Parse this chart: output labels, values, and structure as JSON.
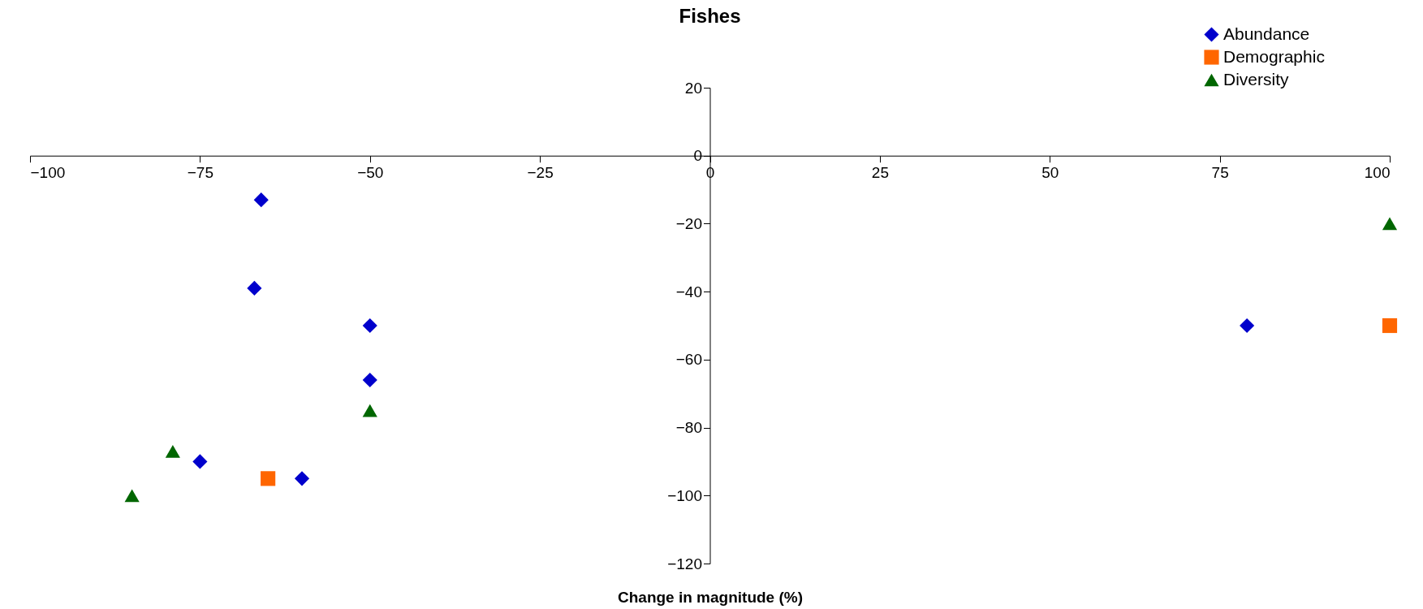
{
  "chart_data": {
    "type": "scatter",
    "title": "Fishes",
    "xlabel": "Change in magnitude (%)",
    "xlim": [
      -100,
      100
    ],
    "xticks": [
      -100,
      -75,
      -50,
      -25,
      0,
      25,
      50,
      75,
      100
    ],
    "ylim": [
      -120,
      20
    ],
    "yticks": [
      -120,
      -100,
      -80,
      -60,
      -40,
      -20,
      0,
      20
    ],
    "grid": false,
    "legend": "top right",
    "series": [
      {
        "name": "Abundance",
        "color": "#0000cc",
        "marker": "diamond",
        "x": [
          -66,
          -67,
          -50,
          -50,
          -75,
          -60,
          79
        ],
        "values": [
          -13,
          -39,
          -50,
          -66,
          -90,
          -95,
          -50
        ]
      },
      {
        "name": "Demographic",
        "color": "#ff6600",
        "marker": "square",
        "x": [
          -65,
          100
        ],
        "values": [
          -95,
          -50
        ]
      },
      {
        "name": "Diversity",
        "color": "#006600",
        "marker": "triangle",
        "x": [
          -79,
          -85,
          -50,
          100
        ],
        "values": [
          -87,
          -100,
          -75,
          -20
        ]
      }
    ]
  }
}
